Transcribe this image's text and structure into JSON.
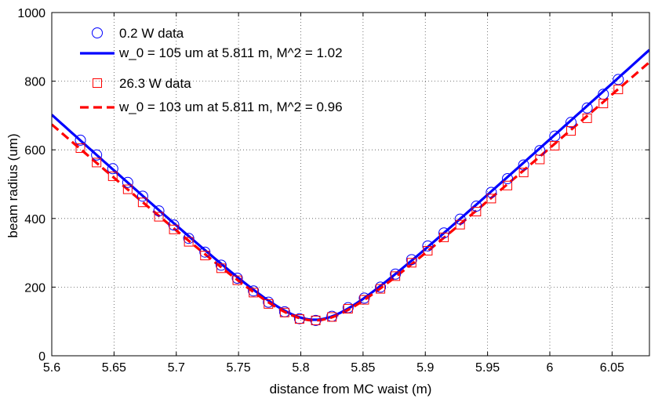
{
  "chart_data": {
    "type": "scatter",
    "xlabel": "distance from MC waist (m)",
    "ylabel": "beam radius (um)",
    "xlim": [
      5.6,
      6.08
    ],
    "ylim": [
      0,
      1000
    ],
    "xticks": [
      "5.6",
      "5.65",
      "5.7",
      "5.75",
      "5.8",
      "5.85",
      "5.9",
      "5.95",
      "6",
      "6.05"
    ],
    "yticks": [
      "0",
      "200",
      "400",
      "600",
      "800",
      "1000"
    ],
    "grid": true,
    "legend_position": "top-left",
    "series": [
      {
        "name": "0.2 W data",
        "kind": "points",
        "marker": "circle",
        "color": "#0000ff",
        "x": [
          5.623,
          5.636,
          5.649,
          5.661,
          5.673,
          5.686,
          5.698,
          5.71,
          5.723,
          5.736,
          5.749,
          5.762,
          5.774,
          5.787,
          5.799,
          5.812,
          5.825,
          5.838,
          5.851,
          5.864,
          5.876,
          5.889,
          5.902,
          5.915,
          5.928,
          5.941,
          5.953,
          5.966,
          5.979,
          5.992,
          6.004,
          6.017,
          6.03,
          6.043,
          6.055
        ],
        "y": [
          628,
          585,
          545,
          505,
          465,
          422,
          381,
          342,
          302,
          264,
          226,
          189,
          156,
          128,
          108,
          103,
          115,
          140,
          168,
          200,
          238,
          280,
          320,
          358,
          398,
          436,
          476,
          516,
          556,
          598,
          640,
          680,
          722,
          762,
          805
        ]
      },
      {
        "name": "w_0 = 105 um at 5.811 m, M^2 = 1.02",
        "kind": "fit",
        "color": "#0000ff",
        "dash": "solid",
        "w0": 105,
        "z0": 5.811,
        "m2": 1.02,
        "x": [
          5.6,
          5.65,
          5.7,
          5.75,
          5.8,
          5.811,
          5.85,
          5.9,
          5.95,
          6.0,
          6.05,
          6.08
        ],
        "y": [
          694,
          530,
          369,
          220,
          108,
          105,
          166,
          312,
          469,
          631,
          795,
          890
        ]
      },
      {
        "name": "26.3 W data",
        "kind": "points",
        "marker": "square",
        "color": "#ff0000",
        "x": [
          5.623,
          5.636,
          5.649,
          5.661,
          5.673,
          5.686,
          5.698,
          5.71,
          5.723,
          5.736,
          5.749,
          5.762,
          5.774,
          5.787,
          5.799,
          5.812,
          5.825,
          5.838,
          5.851,
          5.864,
          5.876,
          5.889,
          5.902,
          5.915,
          5.928,
          5.941,
          5.953,
          5.966,
          5.979,
          5.992,
          6.004,
          6.017,
          6.03,
          6.043,
          6.055
        ],
        "y": [
          605,
          563,
          523,
          485,
          447,
          405,
          368,
          332,
          292,
          255,
          220,
          184,
          151,
          126,
          107,
          103,
          113,
          137,
          163,
          195,
          232,
          271,
          306,
          345,
          382,
          420,
          458,
          496,
          534,
          572,
          612,
          655,
          692,
          735,
          776
        ]
      },
      {
        "name": "w_0 = 103 um at 5.811 m, M^2 = 0.96",
        "kind": "fit",
        "color": "#ff0000",
        "dash": "dashed",
        "w0": 103,
        "z0": 5.811,
        "m2": 0.96,
        "x": [
          5.6,
          5.65,
          5.7,
          5.75,
          5.8,
          5.811,
          5.85,
          5.9,
          5.95,
          6.0,
          6.05,
          6.08
        ],
        "y": [
          670,
          511,
          357,
          213,
          106,
          103,
          160,
          301,
          453,
          609,
          767,
          862
        ]
      }
    ]
  }
}
